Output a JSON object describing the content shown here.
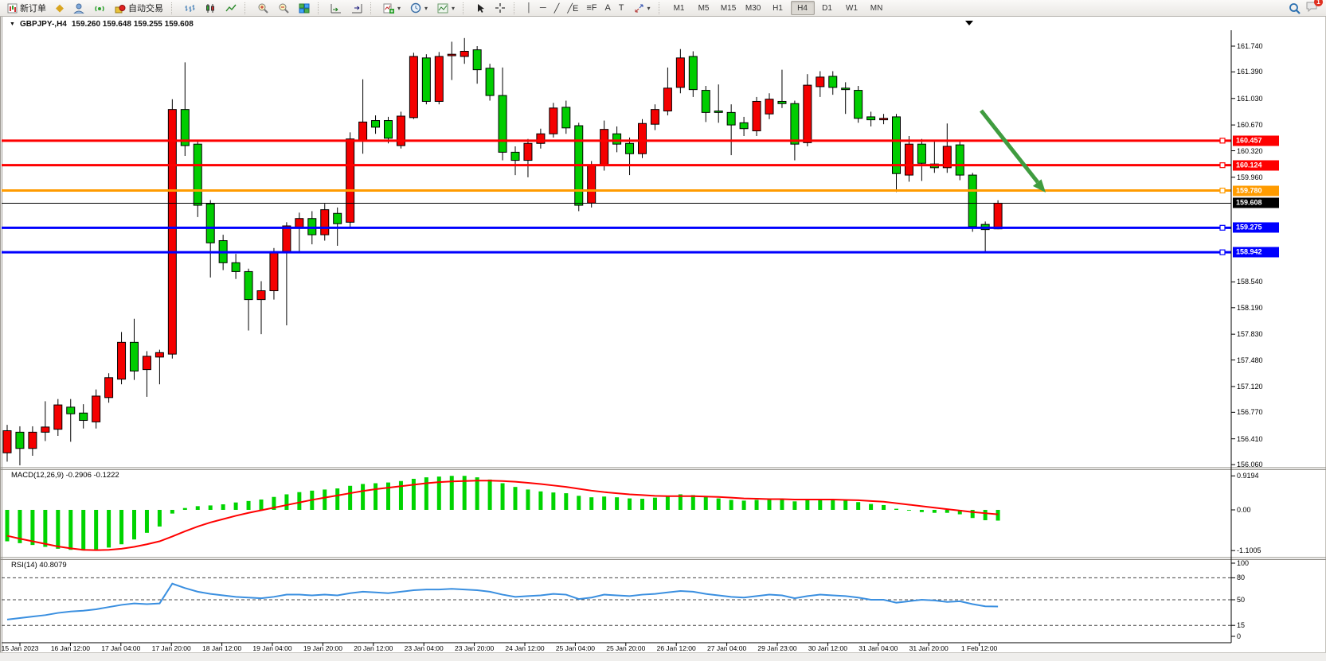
{
  "toolbar": {
    "new_order": "新订单",
    "auto_trading": "自动交易",
    "caret": "▾",
    "timeframes": [
      "M1",
      "M5",
      "M15",
      "M30",
      "H1",
      "H4",
      "D1",
      "W1",
      "MN"
    ],
    "active_timeframe": "H4",
    "notification_badge": "1",
    "tools": [
      {
        "name": "vertical-line-tool",
        "glyph": "│"
      },
      {
        "name": "horizontal-line-tool",
        "glyph": "─"
      },
      {
        "name": "trendline-tool",
        "glyph": "╱"
      },
      {
        "name": "equidistant-channel-tool",
        "glyph": "╱E"
      },
      {
        "name": "fibonacci-tool",
        "glyph": "≡F"
      },
      {
        "name": "text-tool",
        "glyph": "A"
      },
      {
        "name": "text-label-tool",
        "glyph": "T"
      }
    ]
  },
  "chart": {
    "marker": "▼",
    "title": "GBPJPY-,H4",
    "ohlc_text": "159.260 159.648 159.255 159.608"
  },
  "chart_data": {
    "type": "candlestick",
    "symbol": "GBPJPY-",
    "timeframe": "H4",
    "ohlc": {
      "open": 159.26,
      "high": 159.648,
      "low": 159.255,
      "close": 159.608
    },
    "price_axis": {
      "top_price": 161.74,
      "bottom_price": 156.06,
      "ticks": [
        "161.740",
        "161.390",
        "161.030",
        "160.670",
        "160.320",
        "159.960",
        "158.540",
        "158.190",
        "157.830",
        "157.480",
        "157.120",
        "156.770",
        "156.410",
        "156.060"
      ]
    },
    "hlines": [
      {
        "price": 160.457,
        "label": "160.457",
        "color": "#fe0000",
        "width": 3,
        "handle": true
      },
      {
        "price": 160.124,
        "label": "160.124",
        "color": "#fe0000",
        "width": 3,
        "handle": true
      },
      {
        "price": 159.78,
        "label": "159.780",
        "color": "#ff9b00",
        "width": 3,
        "handle": true
      },
      {
        "price": 159.608,
        "label": "159.608",
        "color": "#000000",
        "width": 1,
        "handle": false
      },
      {
        "price": 159.275,
        "label": "159.275",
        "color": "#0000fe",
        "width": 3,
        "handle": true
      },
      {
        "price": 158.942,
        "label": "158.942",
        "color": "#0000fe",
        "width": 3,
        "handle": true
      }
    ],
    "colors": {
      "up": "#f40000",
      "down": "#00cd00",
      "wick": "#000000",
      "macd_bar": "#00d400",
      "macd_signal": "#ff0000",
      "rsi_line": "#3a8fe0",
      "arrow": "#3f9c3f"
    },
    "candles": [
      [
        156.22,
        156.6,
        156.1,
        156.52
      ],
      [
        156.5,
        156.58,
        156.05,
        156.28
      ],
      [
        156.28,
        156.58,
        156.18,
        156.5
      ],
      [
        156.5,
        156.92,
        156.38,
        156.57
      ],
      [
        156.54,
        156.95,
        156.45,
        156.87
      ],
      [
        156.84,
        156.95,
        156.37,
        156.75
      ],
      [
        156.76,
        156.88,
        156.55,
        156.66
      ],
      [
        156.64,
        157.08,
        156.55,
        156.99
      ],
      [
        156.97,
        157.3,
        156.9,
        157.24
      ],
      [
        157.22,
        157.86,
        157.15,
        157.72
      ],
      [
        157.72,
        158.04,
        157.21,
        157.33
      ],
      [
        157.35,
        157.6,
        156.98,
        157.53
      ],
      [
        157.52,
        157.62,
        157.15,
        157.58
      ],
      [
        157.56,
        161.02,
        157.5,
        160.88
      ],
      [
        160.88,
        161.52,
        160.25,
        160.39
      ],
      [
        160.41,
        160.45,
        159.42,
        159.58
      ],
      [
        159.6,
        159.65,
        158.6,
        159.07
      ],
      [
        159.1,
        159.18,
        158.7,
        158.8
      ],
      [
        158.8,
        158.92,
        158.58,
        158.68
      ],
      [
        158.68,
        158.72,
        157.88,
        158.3
      ],
      [
        158.3,
        158.55,
        157.83,
        158.42
      ],
      [
        158.42,
        159.0,
        158.3,
        158.95
      ],
      [
        158.95,
        159.35,
        157.95,
        159.3
      ],
      [
        159.28,
        159.48,
        158.95,
        159.4
      ],
      [
        159.4,
        159.5,
        159.05,
        159.18
      ],
      [
        159.18,
        159.6,
        159.1,
        159.52
      ],
      [
        159.47,
        159.55,
        159.03,
        159.33
      ],
      [
        159.35,
        160.57,
        159.28,
        160.48
      ],
      [
        160.46,
        161.29,
        160.28,
        160.71
      ],
      [
        160.73,
        160.8,
        160.55,
        160.64
      ],
      [
        160.73,
        160.78,
        160.42,
        160.49
      ],
      [
        160.39,
        160.85,
        160.35,
        160.79
      ],
      [
        160.77,
        161.65,
        160.75,
        161.6
      ],
      [
        161.58,
        161.63,
        160.95,
        160.99
      ],
      [
        160.99,
        161.66,
        160.95,
        161.6
      ],
      [
        161.61,
        161.8,
        161.28,
        161.63
      ],
      [
        161.6,
        161.85,
        161.5,
        161.67
      ],
      [
        161.69,
        161.74,
        161.23,
        161.42
      ],
      [
        161.44,
        161.5,
        161.0,
        161.07
      ],
      [
        161.07,
        161.45,
        160.19,
        160.3
      ],
      [
        160.3,
        160.38,
        159.99,
        160.19
      ],
      [
        160.19,
        160.48,
        159.96,
        160.42
      ],
      [
        160.42,
        160.62,
        160.35,
        160.55
      ],
      [
        160.55,
        160.97,
        160.5,
        160.9
      ],
      [
        160.91,
        161.0,
        160.55,
        160.63
      ],
      [
        160.66,
        160.7,
        159.5,
        159.58
      ],
      [
        159.61,
        160.18,
        159.55,
        160.12
      ],
      [
        160.12,
        160.73,
        160.05,
        160.61
      ],
      [
        160.55,
        160.65,
        160.3,
        160.41
      ],
      [
        160.42,
        160.5,
        159.99,
        160.28
      ],
      [
        160.28,
        160.75,
        160.22,
        160.69
      ],
      [
        160.68,
        160.95,
        160.6,
        160.88
      ],
      [
        160.86,
        161.45,
        160.8,
        161.17
      ],
      [
        161.18,
        161.7,
        161.1,
        161.58
      ],
      [
        161.6,
        161.67,
        161.05,
        161.15
      ],
      [
        161.14,
        161.2,
        160.71,
        160.84
      ],
      [
        160.86,
        161.22,
        160.7,
        160.84
      ],
      [
        160.84,
        160.95,
        160.26,
        160.67
      ],
      [
        160.7,
        160.78,
        160.52,
        160.62
      ],
      [
        160.59,
        161.05,
        160.52,
        160.99
      ],
      [
        160.82,
        161.1,
        160.75,
        161.02
      ],
      [
        160.99,
        161.42,
        160.9,
        160.96
      ],
      [
        160.96,
        161.0,
        160.19,
        160.41
      ],
      [
        160.43,
        161.36,
        160.38,
        161.21
      ],
      [
        161.19,
        161.4,
        161.05,
        161.32
      ],
      [
        161.33,
        161.4,
        161.08,
        161.18
      ],
      [
        161.17,
        161.25,
        160.82,
        161.15
      ],
      [
        161.14,
        161.2,
        160.7,
        160.76
      ],
      [
        160.78,
        160.85,
        160.65,
        160.74
      ],
      [
        160.74,
        160.82,
        160.68,
        160.76
      ],
      [
        160.78,
        160.82,
        159.76,
        160.01
      ],
      [
        159.99,
        160.52,
        159.9,
        160.41
      ],
      [
        160.41,
        160.48,
        159.91,
        160.15
      ],
      [
        160.14,
        160.45,
        160.02,
        160.09
      ],
      [
        160.09,
        160.69,
        160.02,
        160.38
      ],
      [
        160.4,
        160.45,
        159.92,
        159.99
      ],
      [
        159.99,
        160.02,
        159.22,
        159.29
      ],
      [
        159.32,
        159.36,
        158.93,
        159.25
      ],
      [
        159.26,
        159.648,
        159.255,
        159.608
      ]
    ],
    "macd": {
      "label": "MACD(12,26,9)",
      "values_text": "-0.2906 -0.1222",
      "ticks": [
        "0.9194",
        "0.00",
        "-1.1005"
      ],
      "histogram": [
        -0.85,
        -0.9,
        -0.95,
        -1.0,
        -1.05,
        -1.08,
        -1.1,
        -1.07,
        -1.02,
        -0.93,
        -0.8,
        -0.62,
        -0.45,
        -0.1,
        0.05,
        0.1,
        0.12,
        0.15,
        0.2,
        0.24,
        0.28,
        0.35,
        0.42,
        0.48,
        0.52,
        0.55,
        0.58,
        0.65,
        0.7,
        0.72,
        0.74,
        0.78,
        0.84,
        0.88,
        0.9,
        0.92,
        0.9194,
        0.88,
        0.82,
        0.72,
        0.62,
        0.55,
        0.5,
        0.47,
        0.45,
        0.38,
        0.34,
        0.36,
        0.34,
        0.31,
        0.3,
        0.33,
        0.38,
        0.42,
        0.4,
        0.36,
        0.31,
        0.27,
        0.25,
        0.27,
        0.29,
        0.29,
        0.23,
        0.26,
        0.29,
        0.29,
        0.26,
        0.21,
        0.16,
        0.13,
        0.03,
        -0.02,
        -0.06,
        -0.08,
        -0.08,
        -0.12,
        -0.22,
        -0.28,
        -0.2906
      ],
      "signal": [
        -0.7,
        -0.78,
        -0.85,
        -0.92,
        -0.99,
        -1.04,
        -1.08,
        -1.09,
        -1.08,
        -1.05,
        -1.0,
        -0.93,
        -0.85,
        -0.72,
        -0.58,
        -0.45,
        -0.34,
        -0.25,
        -0.16,
        -0.08,
        -0.01,
        0.06,
        0.13,
        0.2,
        0.27,
        0.33,
        0.39,
        0.45,
        0.51,
        0.56,
        0.6,
        0.64,
        0.68,
        0.72,
        0.75,
        0.77,
        0.78,
        0.79,
        0.79,
        0.78,
        0.76,
        0.73,
        0.7,
        0.66,
        0.62,
        0.57,
        0.52,
        0.48,
        0.45,
        0.42,
        0.4,
        0.38,
        0.37,
        0.37,
        0.37,
        0.36,
        0.35,
        0.33,
        0.31,
        0.3,
        0.29,
        0.29,
        0.28,
        0.28,
        0.28,
        0.28,
        0.27,
        0.26,
        0.24,
        0.22,
        0.18,
        0.14,
        0.1,
        0.06,
        0.02,
        -0.02,
        -0.06,
        -0.09,
        -0.1222
      ]
    },
    "rsi": {
      "label": "RSI(14)",
      "value_text": "40.8079",
      "ticks": [
        "100",
        "80",
        "50",
        "15",
        "0"
      ],
      "levels": [
        80,
        50,
        15
      ],
      "series": [
        23,
        25,
        27,
        29,
        32,
        34,
        35,
        37,
        40,
        43,
        45,
        44,
        45,
        72,
        66,
        61,
        58,
        56,
        54,
        53,
        52,
        54,
        57,
        57,
        56,
        57,
        56,
        59,
        61,
        60,
        59,
        61,
        63,
        64,
        64,
        65,
        64,
        63,
        61,
        57,
        54,
        55,
        56,
        58,
        57,
        51,
        53,
        57,
        56,
        55,
        57,
        58,
        60,
        62,
        61,
        58,
        56,
        54,
        53,
        55,
        57,
        56,
        52,
        55,
        57,
        56,
        55,
        53,
        50,
        50,
        46,
        48,
        50,
        49,
        47,
        48,
        44,
        41,
        40.8
      ],
      "current": 40.8079
    },
    "time_axis": [
      "15 Jan 2023",
      "16 Jan 12:00",
      "17 Jan 04:00",
      "17 Jan 20:00",
      "18 Jan 12:00",
      "19 Jan 04:00",
      "19 Jan 20:00",
      "20 Jan 12:00",
      "23 Jan 04:00",
      "23 Jan 20:00",
      "24 Jan 12:00",
      "25 Jan 04:00",
      "25 Jan 20:00",
      "26 Jan 12:00",
      "27 Jan 04:00",
      "29 Jan 23:00",
      "30 Jan 12:00",
      "31 Jan 04:00",
      "31 Jan 20:00",
      "1 Feb 12:00"
    ],
    "annotation_arrow": {
      "direction": "down-right",
      "from_price": 160.86,
      "to_price": 159.78
    }
  }
}
